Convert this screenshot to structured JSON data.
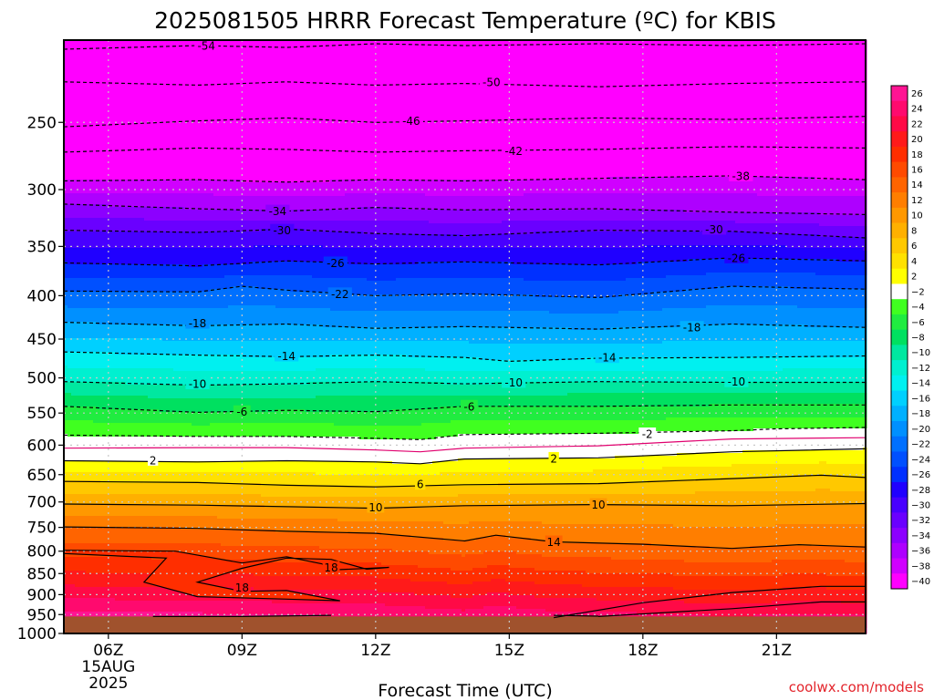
{
  "chart_data": {
    "type": "heatmap",
    "title": "2025081505 HRRR Forecast Temperature (ºC) for KBIS",
    "xlabel": "Forecast Time (UTC)",
    "ylabel": "",
    "credit": "coolwx.com/models",
    "x_ticks": [
      {
        "hour": 6,
        "label": "06Z",
        "sub1": "15AUG",
        "sub2": "2025"
      },
      {
        "hour": 9,
        "label": "09Z"
      },
      {
        "hour": 12,
        "label": "12Z"
      },
      {
        "hour": 15,
        "label": "15Z"
      },
      {
        "hour": 18,
        "label": "18Z"
      },
      {
        "hour": 21,
        "label": "21Z"
      }
    ],
    "xlim": [
      5,
      23
    ],
    "y_ticks": [
      250,
      300,
      350,
      400,
      450,
      500,
      550,
      600,
      650,
      700,
      750,
      800,
      850,
      900,
      950,
      1000
    ],
    "ylim": [
      1000,
      200
    ],
    "y_scale": "log",
    "surface_pressure_hPa": 955,
    "colorbar": {
      "levels": [
        26,
        24,
        22,
        20,
        18,
        16,
        14,
        12,
        10,
        8,
        6,
        4,
        2,
        -2,
        -4,
        -6,
        -8,
        -10,
        -12,
        -14,
        -16,
        -18,
        -20,
        -22,
        -24,
        -26,
        -28,
        -30,
        -32,
        -34,
        -36,
        -38,
        -40
      ],
      "colors": [
        "#ff1493",
        "#ff0a6e",
        "#ff0a46",
        "#ff1a1a",
        "#ff2e00",
        "#ff4a00",
        "#ff6400",
        "#ff7e00",
        "#ff9800",
        "#ffb000",
        "#ffc800",
        "#ffe100",
        "#ffff00",
        "#ffffff",
        "#40ff20",
        "#20ec40",
        "#00e060",
        "#00e8a0",
        "#00f0d0",
        "#00f0f0",
        "#00d0ff",
        "#00b0ff",
        "#0090ff",
        "#0070ff",
        "#0050ff",
        "#0030ff",
        "#2000ff",
        "#4800ff",
        "#6a00ff",
        "#8c00ff",
        "#ae00ff",
        "#d000ff",
        "#ff00ff"
      ]
    },
    "isotherms": [
      {
        "value": -54,
        "levels": [
          [
            5,
            205
          ],
          [
            8,
            203
          ],
          [
            10,
            204
          ],
          [
            12,
            202
          ],
          [
            14,
            203
          ],
          [
            17,
            202
          ],
          [
            20,
            203
          ],
          [
            23,
            202
          ]
        ]
      },
      {
        "value": -50,
        "levels": [
          [
            5,
            224
          ],
          [
            8,
            226
          ],
          [
            10,
            224
          ],
          [
            12,
            226
          ],
          [
            14,
            225
          ],
          [
            17,
            227
          ],
          [
            20,
            225
          ],
          [
            23,
            224
          ]
        ]
      },
      {
        "value": -46,
        "levels": [
          [
            5,
            253
          ],
          [
            8,
            249
          ],
          [
            10,
            247
          ],
          [
            12,
            250
          ],
          [
            14,
            249
          ],
          [
            17,
            247
          ],
          [
            20,
            248
          ],
          [
            23,
            246
          ]
        ]
      },
      {
        "value": -42,
        "levels": [
          [
            5,
            271
          ],
          [
            8,
            268
          ],
          [
            10,
            269
          ],
          [
            12,
            271
          ],
          [
            14,
            270
          ],
          [
            17,
            269
          ],
          [
            20,
            267
          ],
          [
            23,
            268
          ]
        ]
      },
      {
        "value": -38,
        "levels": [
          [
            5,
            293
          ],
          [
            8,
            292
          ],
          [
            10,
            294
          ],
          [
            12,
            292
          ],
          [
            14,
            293
          ],
          [
            17,
            291
          ],
          [
            20,
            289
          ],
          [
            23,
            292
          ]
        ]
      },
      {
        "value": -34,
        "levels": [
          [
            5,
            312
          ],
          [
            8,
            316
          ],
          [
            10,
            318
          ],
          [
            12,
            315
          ],
          [
            14,
            317
          ],
          [
            17,
            316
          ],
          [
            20,
            319
          ],
          [
            23,
            321
          ]
        ]
      },
      {
        "value": -30,
        "levels": [
          [
            5,
            335
          ],
          [
            8,
            337
          ],
          [
            10,
            334
          ],
          [
            12,
            338
          ],
          [
            14,
            340
          ],
          [
            17,
            335
          ],
          [
            20,
            336
          ],
          [
            23,
            342
          ]
        ]
      },
      {
        "value": -26,
        "levels": [
          [
            5,
            366
          ],
          [
            8,
            369
          ],
          [
            10,
            364
          ],
          [
            12,
            367
          ],
          [
            14,
            365
          ],
          [
            17,
            368
          ],
          [
            20,
            361
          ],
          [
            23,
            364
          ]
        ]
      },
      {
        "value": -22,
        "levels": [
          [
            5,
            395
          ],
          [
            8,
            396
          ],
          [
            9,
            390
          ],
          [
            10,
            394
          ],
          [
            12,
            400
          ],
          [
            14,
            398
          ],
          [
            17,
            402
          ],
          [
            20,
            390
          ],
          [
            23,
            393
          ]
        ]
      },
      {
        "value": -18,
        "levels": [
          [
            5,
            430
          ],
          [
            8,
            434
          ],
          [
            10,
            432
          ],
          [
            12,
            437
          ],
          [
            14,
            435
          ],
          [
            17,
            438
          ],
          [
            20,
            432
          ],
          [
            23,
            436
          ]
        ]
      },
      {
        "value": -14,
        "levels": [
          [
            5,
            466
          ],
          [
            8,
            470
          ],
          [
            10,
            472
          ],
          [
            12,
            470
          ],
          [
            14,
            473
          ],
          [
            15,
            478
          ],
          [
            17,
            474
          ],
          [
            20,
            473
          ],
          [
            23,
            471
          ]
        ]
      },
      {
        "value": -10,
        "levels": [
          [
            5,
            505
          ],
          [
            8,
            510
          ],
          [
            10,
            508
          ],
          [
            12,
            505
          ],
          [
            14,
            508
          ],
          [
            17,
            505
          ],
          [
            20,
            506
          ],
          [
            23,
            506
          ]
        ]
      },
      {
        "value": -6,
        "levels": [
          [
            5,
            540
          ],
          [
            8,
            549
          ],
          [
            10,
            546
          ],
          [
            12,
            548
          ],
          [
            14,
            540
          ],
          [
            17,
            540
          ],
          [
            20,
            538
          ],
          [
            23,
            538
          ]
        ]
      },
      {
        "value": -2,
        "levels": [
          [
            5,
            584
          ],
          [
            8,
            586
          ],
          [
            10,
            586
          ],
          [
            12,
            589
          ],
          [
            13,
            591
          ],
          [
            14,
            583
          ],
          [
            17,
            581
          ],
          [
            20,
            577
          ],
          [
            21,
            574
          ],
          [
            23,
            572
          ]
        ]
      },
      {
        "value": 0,
        "color": "#e0006e",
        "dashed": false,
        "levels": [
          [
            5,
            605
          ],
          [
            8,
            604
          ],
          [
            10,
            604
          ],
          [
            12,
            608
          ],
          [
            13,
            611
          ],
          [
            14,
            605
          ],
          [
            17,
            601
          ],
          [
            20,
            590
          ],
          [
            23,
            588
          ]
        ]
      },
      {
        "value": 2,
        "levels": [
          [
            5,
            626
          ],
          [
            8,
            628
          ],
          [
            10,
            626
          ],
          [
            12,
            628
          ],
          [
            13,
            631
          ],
          [
            14,
            623
          ],
          [
            17,
            621
          ],
          [
            20,
            611
          ],
          [
            23,
            606
          ]
        ]
      },
      {
        "value": 6,
        "levels": [
          [
            5,
            662
          ],
          [
            8,
            664
          ],
          [
            10,
            669
          ],
          [
            12,
            672
          ],
          [
            14,
            668
          ],
          [
            17,
            666
          ],
          [
            20,
            657
          ],
          [
            22,
            651
          ],
          [
            23,
            655
          ]
        ]
      },
      {
        "value": 10,
        "levels": [
          [
            5,
            704
          ],
          [
            8,
            706
          ],
          [
            10,
            709
          ],
          [
            12,
            712
          ],
          [
            14,
            707
          ],
          [
            17,
            705
          ],
          [
            20,
            707
          ],
          [
            23,
            703
          ]
        ]
      },
      {
        "value": 14,
        "levels": [
          [
            5,
            749
          ],
          [
            8,
            752
          ],
          [
            10,
            758
          ],
          [
            12,
            762
          ],
          [
            14,
            778
          ],
          [
            14.7,
            766
          ],
          [
            16,
            780
          ],
          [
            18,
            785
          ],
          [
            20,
            794
          ],
          [
            21.5,
            786
          ],
          [
            23,
            791
          ]
        ]
      }
    ],
    "contour_labels": [
      {
        "text": "-54",
        "hour": 8.2,
        "p": 203
      },
      {
        "text": "-50",
        "hour": 14.6,
        "p": 224
      },
      {
        "text": "-46",
        "hour": 12.8,
        "p": 249
      },
      {
        "text": "-42",
        "hour": 15.1,
        "p": 270
      },
      {
        "text": "-38",
        "hour": 20.2,
        "p": 289
      },
      {
        "text": "-34",
        "hour": 9.8,
        "p": 318
      },
      {
        "text": "-30",
        "hour": 9.9,
        "p": 335
      },
      {
        "text": "-30",
        "hour": 19.6,
        "p": 334
      },
      {
        "text": "-26",
        "hour": 11.1,
        "p": 366
      },
      {
        "text": "-26",
        "hour": 20.1,
        "p": 361
      },
      {
        "text": "-22",
        "hour": 11.2,
        "p": 398
      },
      {
        "text": "-18",
        "hour": 8.0,
        "p": 431
      },
      {
        "text": "-18",
        "hour": 19.1,
        "p": 436
      },
      {
        "text": "-14",
        "hour": 10.0,
        "p": 471
      },
      {
        "text": "-14",
        "hour": 17.2,
        "p": 473
      },
      {
        "text": "-10",
        "hour": 8.0,
        "p": 508
      },
      {
        "text": "-10",
        "hour": 15.1,
        "p": 506
      },
      {
        "text": "-10",
        "hour": 20.1,
        "p": 505
      },
      {
        "text": "-6",
        "hour": 9.0,
        "p": 548
      },
      {
        "text": "-6",
        "hour": 14.1,
        "p": 540
      },
      {
        "text": "-2",
        "hour": 18.1,
        "p": 582
      },
      {
        "text": "2",
        "hour": 7.0,
        "p": 625
      },
      {
        "text": "2",
        "hour": 16.0,
        "p": 622
      },
      {
        "text": "6",
        "hour": 13.0,
        "p": 667
      },
      {
        "text": "10",
        "hour": 12.0,
        "p": 710
      },
      {
        "text": "10",
        "hour": 17.0,
        "p": 705
      },
      {
        "text": "14",
        "hour": 16.0,
        "p": 780
      },
      {
        "text": "18",
        "hour": 11.0,
        "p": 836
      },
      {
        "text": "18",
        "hour": 9.0,
        "p": 883
      }
    ],
    "warm_regions": [
      {
        "value": 18,
        "closed": true,
        "points": [
          [
            5,
            805
          ],
          [
            7.3,
            815
          ],
          [
            6.8,
            870
          ],
          [
            8,
            905
          ],
          [
            10,
            911
          ],
          [
            11.2,
            915
          ],
          [
            10,
            890
          ],
          [
            9,
            892
          ],
          [
            8,
            870
          ],
          [
            9,
            838
          ],
          [
            10,
            815
          ],
          [
            11,
            818
          ],
          [
            11.8,
            840
          ],
          [
            12.3,
            836
          ],
          [
            11,
            842
          ],
          [
            10.8,
            828
          ],
          [
            10,
            812
          ],
          [
            9,
            826
          ],
          [
            7.5,
            800
          ],
          [
            5,
            798
          ]
        ]
      },
      {
        "value": 18,
        "closed": false,
        "points": [
          [
            16,
            958
          ],
          [
            18,
            920
          ],
          [
            20,
            895
          ],
          [
            22,
            880
          ],
          [
            23,
            880
          ]
        ]
      },
      {
        "value": 22,
        "closed": false,
        "points": [
          [
            16,
            952
          ],
          [
            17,
            954
          ]
        ]
      },
      {
        "value": 18,
        "closed": false,
        "points": [
          [
            7,
            955
          ],
          [
            9,
            955
          ],
          [
            11,
            952
          ]
        ]
      },
      {
        "value": 22,
        "closed": false,
        "points": [
          [
            17,
            955
          ],
          [
            20,
            935
          ],
          [
            22,
            918
          ],
          [
            23,
            918
          ]
        ]
      }
    ]
  }
}
